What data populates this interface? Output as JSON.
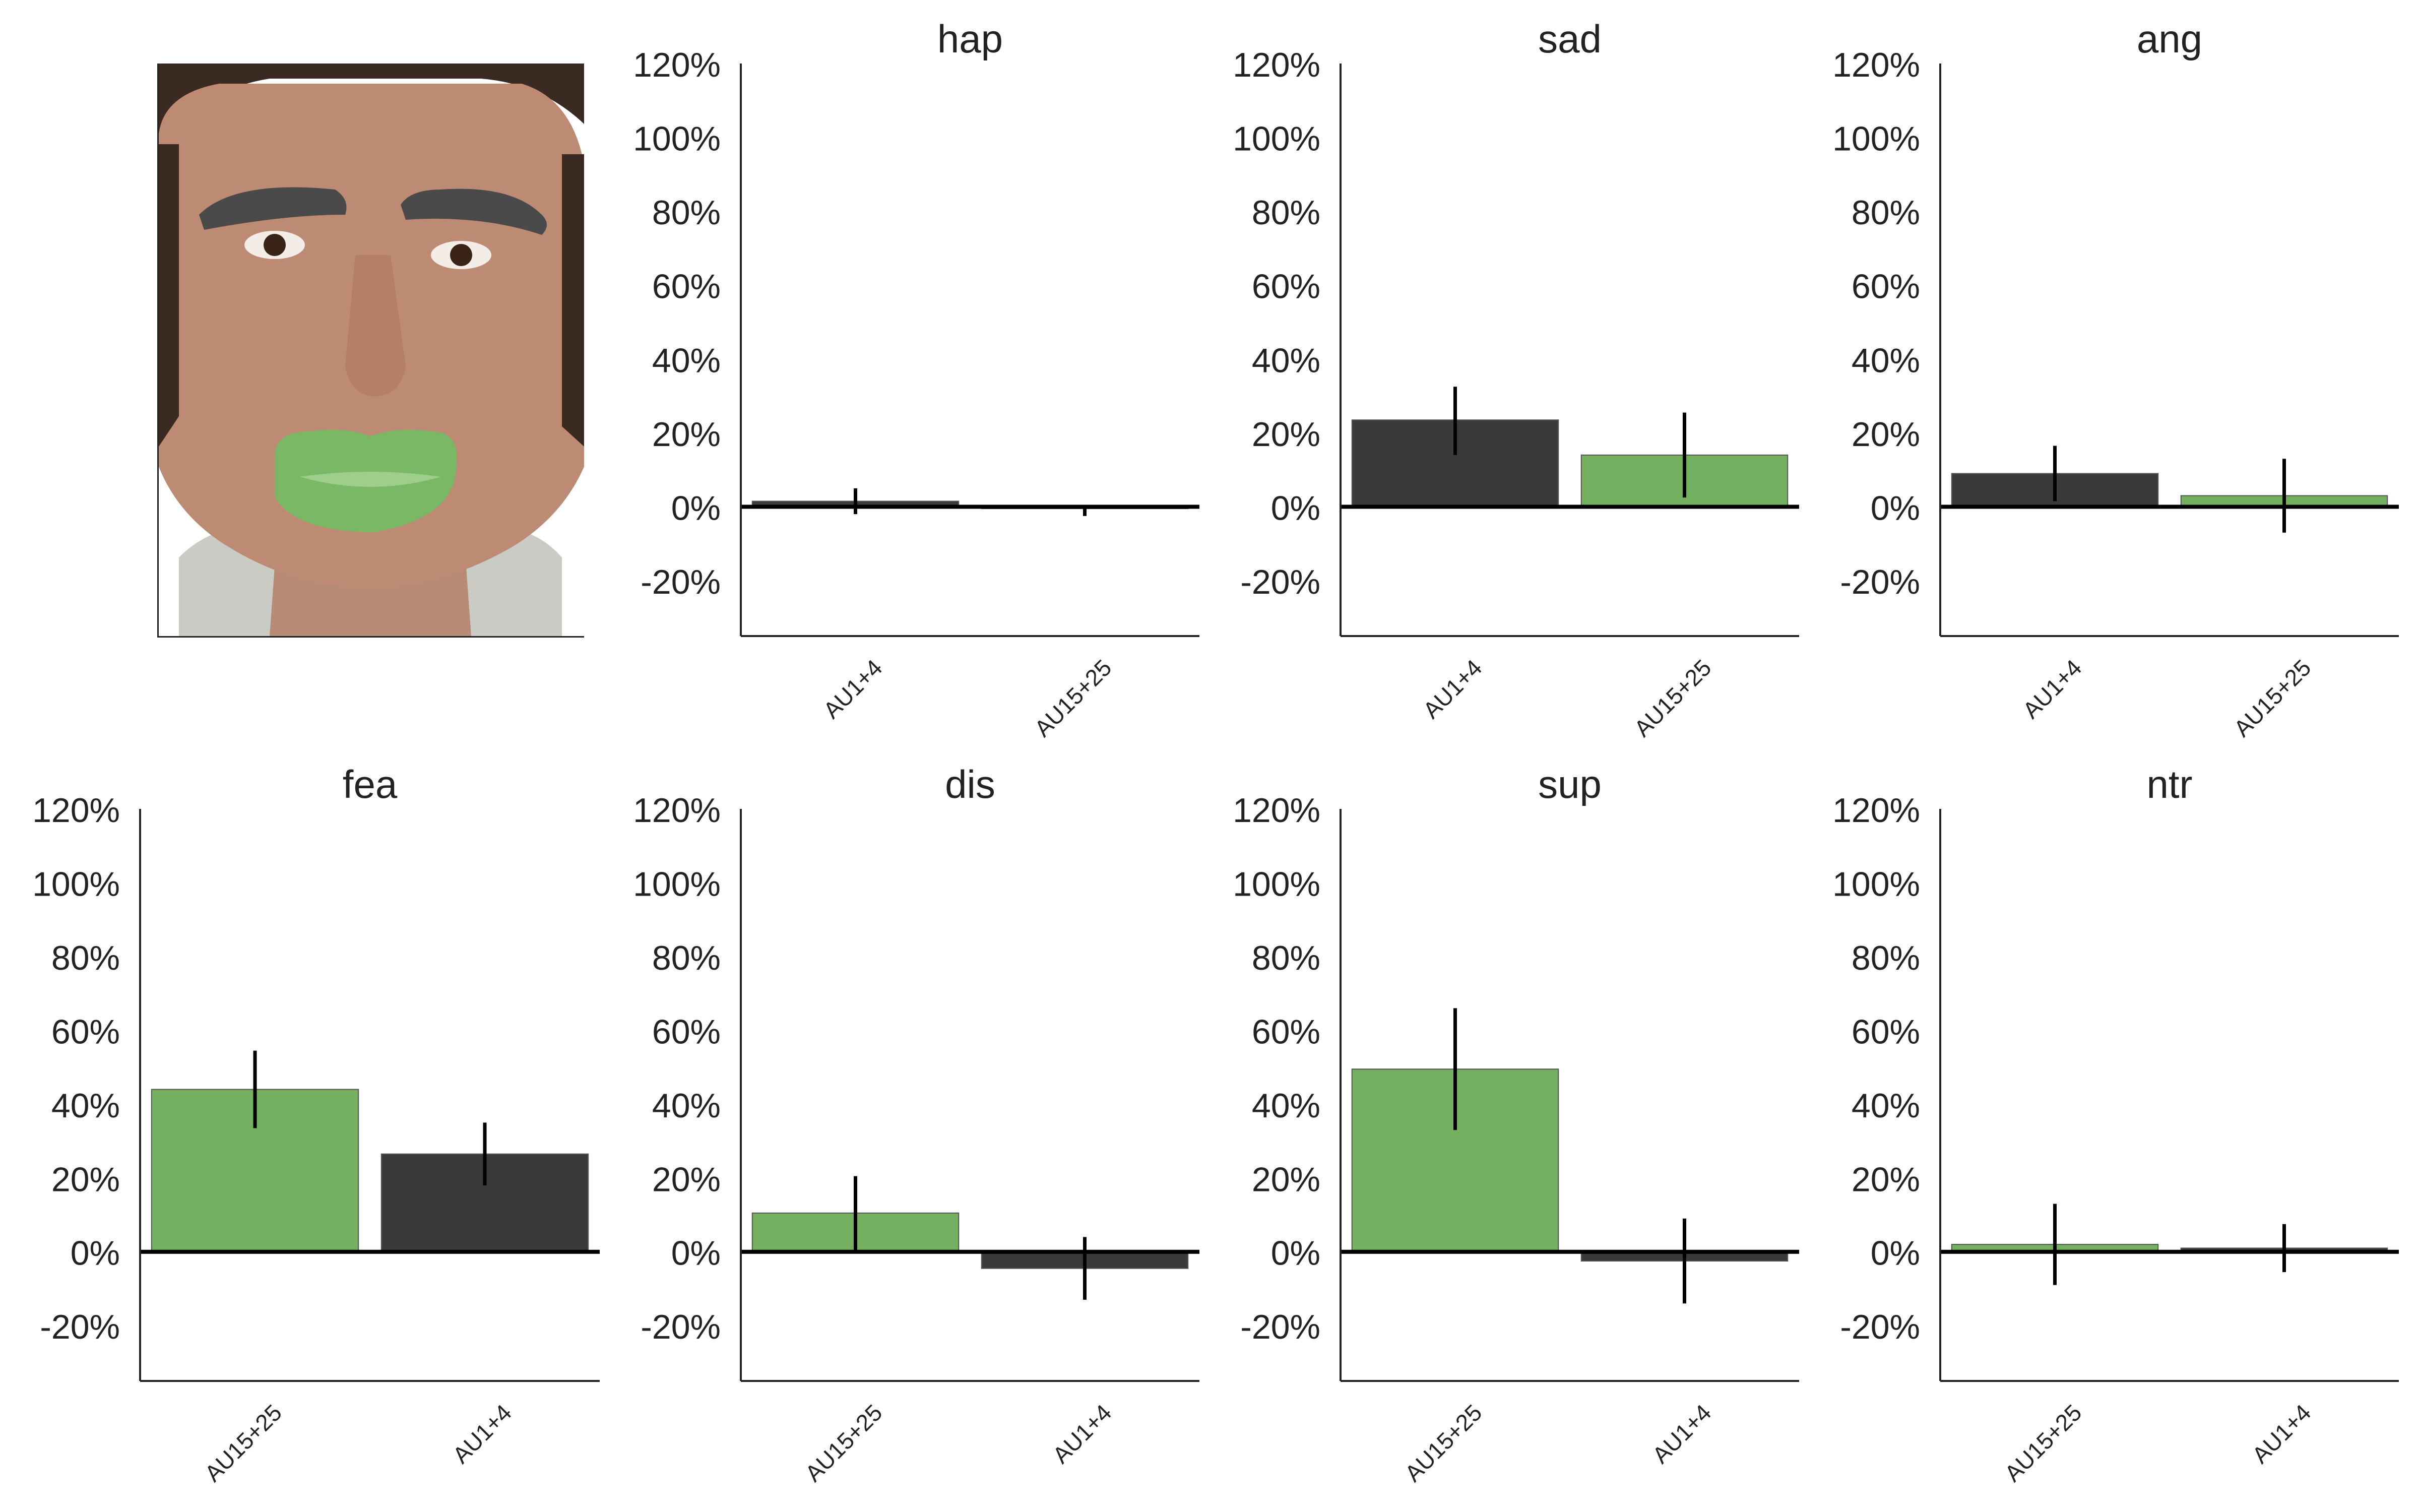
{
  "figure": {
    "colors": {
      "dark_bar": "#3a3a3a",
      "green_bar": "#74b05f",
      "axis": "#000000",
      "text": "#222222"
    }
  },
  "face_image": {
    "description_icon": "face-photo-with-highlighted-brows-and-mouth",
    "highlight_colors": {
      "brows": "#4a4a4a",
      "mouth": "#7ab866"
    }
  },
  "chart_data": [
    {
      "type": "bar",
      "title": "hap",
      "categories": [
        "AU1+4",
        "AU15+25"
      ],
      "values": [
        1.5,
        -0.5
      ],
      "errors": [
        [
          -2,
          5
        ],
        [
          -2.5,
          0.5
        ]
      ],
      "colors": [
        "#3a3a3a",
        "#74b05f"
      ],
      "ylim": [
        -35,
        120
      ],
      "yticks": [
        -20,
        0,
        20,
        40,
        60,
        80,
        100,
        120
      ],
      "ytick_labels": [
        "-20%",
        "0%",
        "20%",
        "40%",
        "60%",
        "80%",
        "100%",
        "120%"
      ],
      "grid": false
    },
    {
      "type": "bar",
      "title": "sad",
      "categories": [
        "AU1+4",
        "AU15+25"
      ],
      "values": [
        23.5,
        14
      ],
      "errors": [
        [
          14,
          32.5
        ],
        [
          2.5,
          25.5
        ]
      ],
      "colors": [
        "#3a3a3a",
        "#74b05f"
      ],
      "ylim": [
        -35,
        120
      ],
      "yticks": [
        -20,
        0,
        20,
        40,
        60,
        80,
        100,
        120
      ],
      "ytick_labels": [
        "-20%",
        "0%",
        "20%",
        "40%",
        "60%",
        "80%",
        "100%",
        "120%"
      ],
      "grid": false
    },
    {
      "type": "bar",
      "title": "ang",
      "categories": [
        "AU1+4",
        "AU15+25"
      ],
      "values": [
        9,
        3
      ],
      "errors": [
        [
          1.5,
          16.5
        ],
        [
          -7,
          13
        ]
      ],
      "colors": [
        "#3a3a3a",
        "#74b05f"
      ],
      "ylim": [
        -35,
        120
      ],
      "yticks": [
        -20,
        0,
        20,
        40,
        60,
        80,
        100,
        120
      ],
      "ytick_labels": [
        "-20%",
        "0%",
        "20%",
        "40%",
        "60%",
        "80%",
        "100%",
        "120%"
      ],
      "grid": false
    },
    {
      "type": "bar",
      "title": "fea",
      "categories": [
        "AU15+25",
        "AU1+4"
      ],
      "values": [
        44,
        26.5
      ],
      "errors": [
        [
          33.5,
          54.5
        ],
        [
          18,
          35
        ]
      ],
      "colors": [
        "#74b05f",
        "#3a3a3a"
      ],
      "ylim": [
        -35,
        120
      ],
      "yticks": [
        -20,
        0,
        20,
        40,
        60,
        80,
        100,
        120
      ],
      "ytick_labels": [
        "-20%",
        "0%",
        "20%",
        "40%",
        "60%",
        "80%",
        "100%",
        "120%"
      ],
      "grid": false
    },
    {
      "type": "bar",
      "title": "dis",
      "categories": [
        "AU15+25",
        "AU1+4"
      ],
      "values": [
        10.5,
        -4.5
      ],
      "errors": [
        [
          0,
          20.5
        ],
        [
          -13,
          4
        ]
      ],
      "colors": [
        "#74b05f",
        "#3a3a3a"
      ],
      "ylim": [
        -35,
        120
      ],
      "yticks": [
        -20,
        0,
        20,
        40,
        60,
        80,
        100,
        120
      ],
      "ytick_labels": [
        "-20%",
        "0%",
        "20%",
        "40%",
        "60%",
        "80%",
        "100%",
        "120%"
      ],
      "grid": false
    },
    {
      "type": "bar",
      "title": "sup",
      "categories": [
        "AU15+25",
        "AU1+4"
      ],
      "values": [
        49.5,
        -2.5
      ],
      "errors": [
        [
          33,
          66
        ],
        [
          -14,
          9
        ]
      ],
      "colors": [
        "#74b05f",
        "#3a3a3a"
      ],
      "ylim": [
        -35,
        120
      ],
      "yticks": [
        -20,
        0,
        20,
        40,
        60,
        80,
        100,
        120
      ],
      "ytick_labels": [
        "-20%",
        "0%",
        "20%",
        "40%",
        "60%",
        "80%",
        "100%",
        "120%"
      ],
      "grid": false
    },
    {
      "type": "bar",
      "title": "ntr",
      "categories": [
        "AU15+25",
        "AU1+4"
      ],
      "values": [
        2,
        1
      ],
      "errors": [
        [
          -9,
          13
        ],
        [
          -5.5,
          7.5
        ]
      ],
      "colors": [
        "#74b05f",
        "#3a3a3a"
      ],
      "ylim": [
        -35,
        120
      ],
      "yticks": [
        -20,
        0,
        20,
        40,
        60,
        80,
        100,
        120
      ],
      "ytick_labels": [
        "-20%",
        "0%",
        "20%",
        "40%",
        "60%",
        "80%",
        "100%",
        "120%"
      ],
      "grid": false
    }
  ]
}
